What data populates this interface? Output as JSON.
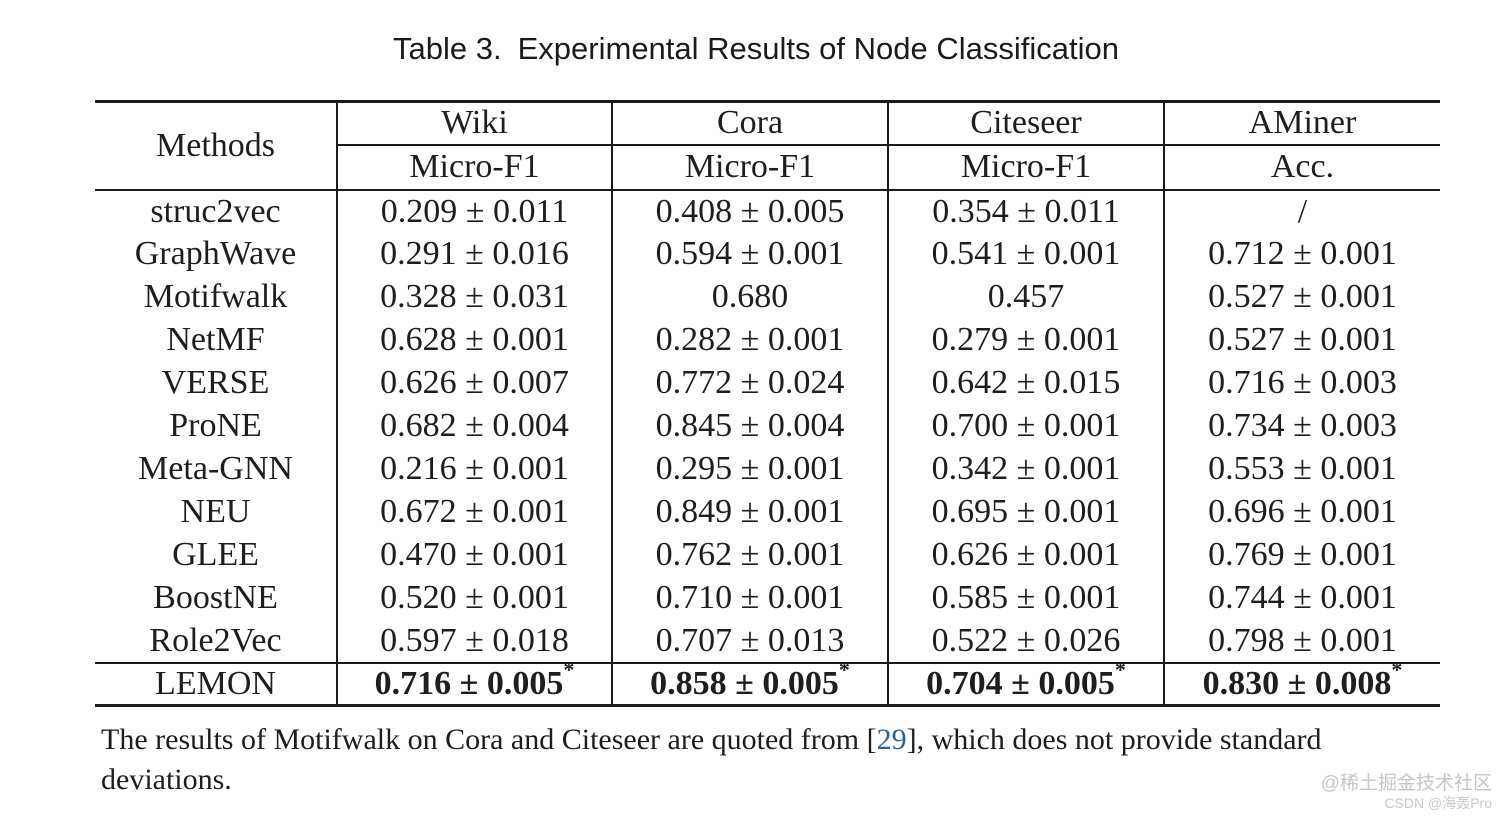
{
  "caption": {
    "label": "Table 3.",
    "title": "Experimental Results of Node Classification"
  },
  "table": {
    "methods_header": "Methods",
    "columns": [
      {
        "dataset": "Wiki",
        "metric": "Micro-F1"
      },
      {
        "dataset": "Cora",
        "metric": "Micro-F1"
      },
      {
        "dataset": "Citeseer",
        "metric": "Micro-F1"
      },
      {
        "dataset": "AMiner",
        "metric": "Acc."
      }
    ],
    "rows": [
      {
        "method": "struc2vec",
        "values": [
          "0.209 ± 0.011",
          "0.408 ± 0.005",
          "0.354 ± 0.011",
          "/"
        ]
      },
      {
        "method": "GraphWave",
        "values": [
          "0.291 ± 0.016",
          "0.594 ± 0.001",
          "0.541 ± 0.001",
          "0.712 ± 0.001"
        ]
      },
      {
        "method": "Motifwalk",
        "values": [
          "0.328 ± 0.031",
          "0.680",
          "0.457",
          "0.527 ± 0.001"
        ]
      },
      {
        "method": "NetMF",
        "values": [
          "0.628 ± 0.001",
          "0.282 ± 0.001",
          "0.279 ± 0.001",
          "0.527 ± 0.001"
        ]
      },
      {
        "method": "VERSE",
        "values": [
          "0.626 ± 0.007",
          "0.772 ± 0.024",
          "0.642 ± 0.015",
          "0.716 ± 0.003"
        ]
      },
      {
        "method": "ProNE",
        "values": [
          "0.682 ± 0.004",
          "0.845 ± 0.004",
          "0.700 ± 0.001",
          "0.734 ± 0.003"
        ]
      },
      {
        "method": "Meta-GNN",
        "values": [
          "0.216 ± 0.001",
          "0.295 ± 0.001",
          "0.342 ± 0.001",
          "0.553 ± 0.001"
        ]
      },
      {
        "method": "NEU",
        "values": [
          "0.672 ± 0.001",
          "0.849 ± 0.001",
          "0.695 ± 0.001",
          "0.696 ± 0.001"
        ]
      },
      {
        "method": "GLEE",
        "values": [
          "0.470 ± 0.001",
          "0.762 ± 0.001",
          "0.626 ± 0.001",
          "0.769 ± 0.001"
        ]
      },
      {
        "method": "BoostNE",
        "values": [
          "0.520 ± 0.001",
          "0.710 ± 0.001",
          "0.585 ± 0.001",
          "0.744 ± 0.001"
        ]
      },
      {
        "method": "Role2Vec",
        "values": [
          "0.597 ± 0.018",
          "0.707 ± 0.013",
          "0.522 ± 0.026",
          "0.798 ± 0.001"
        ]
      },
      {
        "method": "LEMON",
        "values": [
          "0.716 ± 0.005",
          "0.858 ± 0.005",
          "0.704 ± 0.005",
          "0.830 ± 0.008"
        ],
        "bold": true,
        "star": "*",
        "separated": true
      }
    ]
  },
  "chart_data": {
    "type": "table",
    "title": "Table 3. Experimental Results of Node Classification",
    "columns": [
      "Methods",
      "Wiki Micro-F1",
      "Cora Micro-F1",
      "Citeseer Micro-F1",
      "AMiner Acc."
    ],
    "rows": [
      [
        "struc2vec",
        "0.209 ± 0.011",
        "0.408 ± 0.005",
        "0.354 ± 0.011",
        "/"
      ],
      [
        "GraphWave",
        "0.291 ± 0.016",
        "0.594 ± 0.001",
        "0.541 ± 0.001",
        "0.712 ± 0.001"
      ],
      [
        "Motifwalk",
        "0.328 ± 0.031",
        "0.680",
        "0.457",
        "0.527 ± 0.001"
      ],
      [
        "NetMF",
        "0.628 ± 0.001",
        "0.282 ± 0.001",
        "0.279 ± 0.001",
        "0.527 ± 0.001"
      ],
      [
        "VERSE",
        "0.626 ± 0.007",
        "0.772 ± 0.024",
        "0.642 ± 0.015",
        "0.716 ± 0.003"
      ],
      [
        "ProNE",
        "0.682 ± 0.004",
        "0.845 ± 0.004",
        "0.700 ± 0.001",
        "0.734 ± 0.003"
      ],
      [
        "Meta-GNN",
        "0.216 ± 0.001",
        "0.295 ± 0.001",
        "0.342 ± 0.001",
        "0.553 ± 0.001"
      ],
      [
        "NEU",
        "0.672 ± 0.001",
        "0.849 ± 0.001",
        "0.695 ± 0.001",
        "0.696 ± 0.001"
      ],
      [
        "GLEE",
        "0.470 ± 0.001",
        "0.762 ± 0.001",
        "0.626 ± 0.001",
        "0.769 ± 0.001"
      ],
      [
        "BoostNE",
        "0.520 ± 0.001",
        "0.710 ± 0.001",
        "0.585 ± 0.001",
        "0.744 ± 0.001"
      ],
      [
        "Role2Vec",
        "0.597 ± 0.018",
        "0.707 ± 0.013",
        "0.522 ± 0.026",
        "0.798 ± 0.001"
      ],
      [
        "LEMON",
        "0.716 ± 0.005*",
        "0.858 ± 0.005*",
        "0.704 ± 0.005*",
        "0.830 ± 0.008*"
      ]
    ]
  },
  "footnote": {
    "before_citation": "The results of Motifwalk on Cora and Citeseer are quoted from [",
    "citation": "29",
    "after_citation": "], which does not provide standard deviations.",
    "citation_color": "#2563a0"
  },
  "watermark": {
    "line1": "@稀土掘金技术社区",
    "line2": "CSDN @海轰Pro",
    "color": "#c6c6c6"
  }
}
